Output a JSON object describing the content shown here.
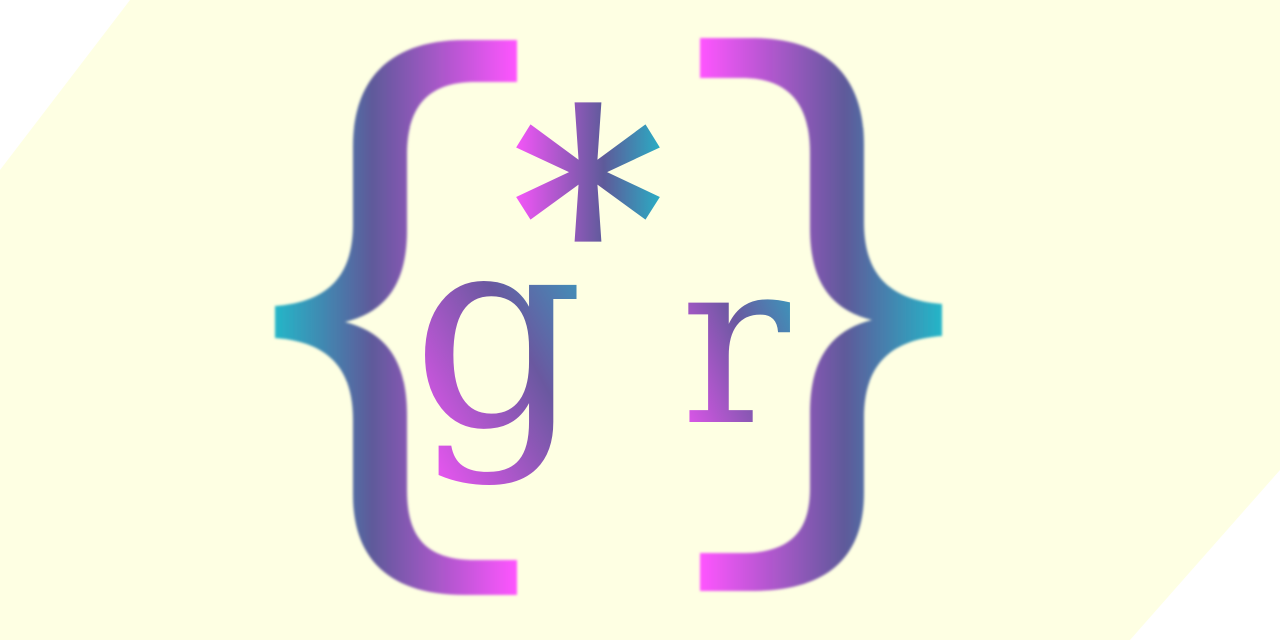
{
  "logo": {
    "letter_left": "g",
    "letter_right": "r",
    "asterisk": "*",
    "brace_left": "{",
    "brace_right": "}"
  },
  "colors": {
    "background_band": "#feffe3",
    "page": "#ffffff",
    "magenta": "#ff55ff",
    "teal": "#24b6c8",
    "purple": "#8a4ab0"
  }
}
